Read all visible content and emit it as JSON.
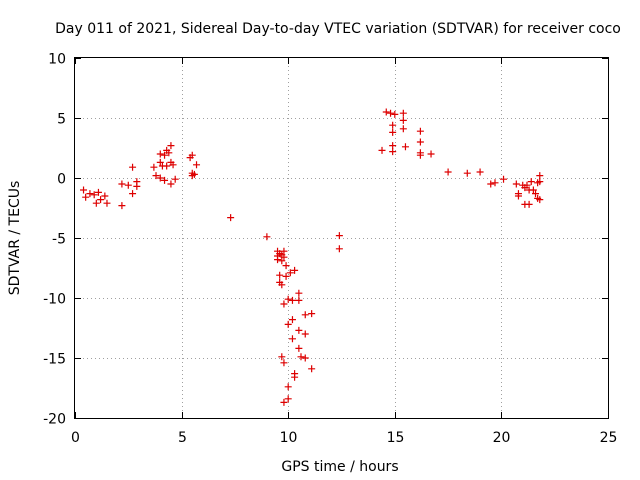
{
  "chart_data": {
    "type": "scatter",
    "title": "Day 011 of 2021, Sidereal Day-to-day VTEC variation (SDTVAR) for receiver coco",
    "xlabel": "GPS time / hours",
    "ylabel": "SDTVAR / TECUs",
    "xlim": [
      0,
      25
    ],
    "ylim": [
      -20,
      10
    ],
    "xticks": [
      0,
      5,
      10,
      15,
      20,
      25
    ],
    "yticks": [
      -20,
      -15,
      -10,
      -5,
      0,
      5,
      10
    ],
    "xtick_labels": [
      "0",
      "5",
      "10",
      "15",
      "20",
      "25"
    ],
    "ytick_labels": [
      "-20",
      "-15",
      "-10",
      "-5",
      "0",
      "5",
      "10"
    ],
    "grid": true,
    "marker": "plus",
    "color": "#dd0000",
    "series": [
      {
        "name": "SDTVAR",
        "points": [
          [
            0.4,
            -1.0
          ],
          [
            0.5,
            -1.6
          ],
          [
            0.7,
            -1.3
          ],
          [
            0.9,
            -1.4
          ],
          [
            1.0,
            -2.1
          ],
          [
            1.1,
            -1.2
          ],
          [
            1.2,
            -1.8
          ],
          [
            1.4,
            -1.5
          ],
          [
            1.5,
            -2.1
          ],
          [
            2.2,
            -2.3
          ],
          [
            2.2,
            -0.5
          ],
          [
            2.5,
            -0.6
          ],
          [
            2.7,
            -1.3
          ],
          [
            2.7,
            0.9
          ],
          [
            2.9,
            -0.7
          ],
          [
            2.9,
            -0.3
          ],
          [
            3.7,
            0.9
          ],
          [
            3.8,
            0.2
          ],
          [
            4.0,
            2.0
          ],
          [
            4.0,
            1.3
          ],
          [
            4.0,
            0.0
          ],
          [
            4.1,
            1.0
          ],
          [
            4.2,
            1.9
          ],
          [
            4.2,
            -0.2
          ],
          [
            4.3,
            2.3
          ],
          [
            4.3,
            1.0
          ],
          [
            4.4,
            2.1
          ],
          [
            4.5,
            2.7
          ],
          [
            4.5,
            1.3
          ],
          [
            4.5,
            -0.5
          ],
          [
            4.6,
            1.1
          ],
          [
            4.7,
            -0.1
          ],
          [
            5.4,
            1.7
          ],
          [
            5.5,
            1.9
          ],
          [
            5.5,
            0.4
          ],
          [
            5.5,
            0.2
          ],
          [
            5.6,
            0.3
          ],
          [
            5.7,
            1.1
          ],
          [
            7.3,
            -3.3
          ],
          [
            9.0,
            -4.9
          ],
          [
            9.5,
            -6.1
          ],
          [
            9.5,
            -6.5
          ],
          [
            9.5,
            -6.8
          ],
          [
            9.6,
            -6.3
          ],
          [
            9.6,
            -8.1
          ],
          [
            9.6,
            -8.7
          ],
          [
            9.7,
            -6.4
          ],
          [
            9.7,
            -6.9
          ],
          [
            9.7,
            -8.9
          ],
          [
            9.7,
            -14.9
          ],
          [
            9.8,
            -6.1
          ],
          [
            9.8,
            -6.6
          ],
          [
            9.8,
            -10.5
          ],
          [
            9.8,
            -15.4
          ],
          [
            9.8,
            -18.7
          ],
          [
            9.9,
            -7.3
          ],
          [
            9.9,
            -8.2
          ],
          [
            10.0,
            -10.1
          ],
          [
            10.0,
            -12.2
          ],
          [
            10.0,
            -18.4
          ],
          [
            10.0,
            -17.4
          ],
          [
            10.1,
            -7.9
          ],
          [
            10.2,
            -10.2
          ],
          [
            10.2,
            -11.8
          ],
          [
            10.2,
            -13.4
          ],
          [
            10.3,
            -7.7
          ],
          [
            10.3,
            -16.3
          ],
          [
            10.3,
            -16.6
          ],
          [
            10.5,
            -9.6
          ],
          [
            10.5,
            -10.2
          ],
          [
            10.5,
            -12.7
          ],
          [
            10.5,
            -14.2
          ],
          [
            10.6,
            -14.9
          ],
          [
            10.8,
            -11.4
          ],
          [
            10.8,
            -13.0
          ],
          [
            10.8,
            -15.0
          ],
          [
            11.1,
            -11.3
          ],
          [
            11.1,
            -15.9
          ],
          [
            12.4,
            -4.8
          ],
          [
            12.4,
            -5.9
          ],
          [
            14.4,
            2.3
          ],
          [
            14.6,
            5.5
          ],
          [
            14.8,
            5.4
          ],
          [
            14.9,
            4.4
          ],
          [
            14.9,
            3.8
          ],
          [
            14.9,
            2.7
          ],
          [
            14.9,
            2.2
          ],
          [
            15.0,
            5.3
          ],
          [
            15.4,
            5.4
          ],
          [
            15.4,
            4.8
          ],
          [
            15.4,
            4.1
          ],
          [
            15.5,
            2.6
          ],
          [
            16.2,
            3.9
          ],
          [
            16.2,
            3.0
          ],
          [
            16.2,
            2.1
          ],
          [
            16.2,
            1.9
          ],
          [
            16.7,
            2.0
          ],
          [
            17.5,
            0.5
          ],
          [
            18.4,
            0.4
          ],
          [
            19.0,
            0.5
          ],
          [
            19.5,
            -0.5
          ],
          [
            19.7,
            -0.4
          ],
          [
            20.1,
            -0.1
          ],
          [
            20.7,
            -0.5
          ],
          [
            20.8,
            -1.3
          ],
          [
            20.8,
            -1.5
          ],
          [
            21.0,
            -0.6
          ],
          [
            21.1,
            -0.8
          ],
          [
            21.1,
            -2.2
          ],
          [
            21.2,
            -0.6
          ],
          [
            21.3,
            -2.2
          ],
          [
            21.3,
            -1.0
          ],
          [
            21.4,
            -0.3
          ],
          [
            21.5,
            -1.0
          ],
          [
            21.6,
            -1.3
          ],
          [
            21.7,
            -0.4
          ],
          [
            21.7,
            -1.7
          ],
          [
            21.8,
            0.2
          ],
          [
            21.8,
            -1.8
          ],
          [
            21.8,
            -0.3
          ]
        ]
      }
    ]
  }
}
